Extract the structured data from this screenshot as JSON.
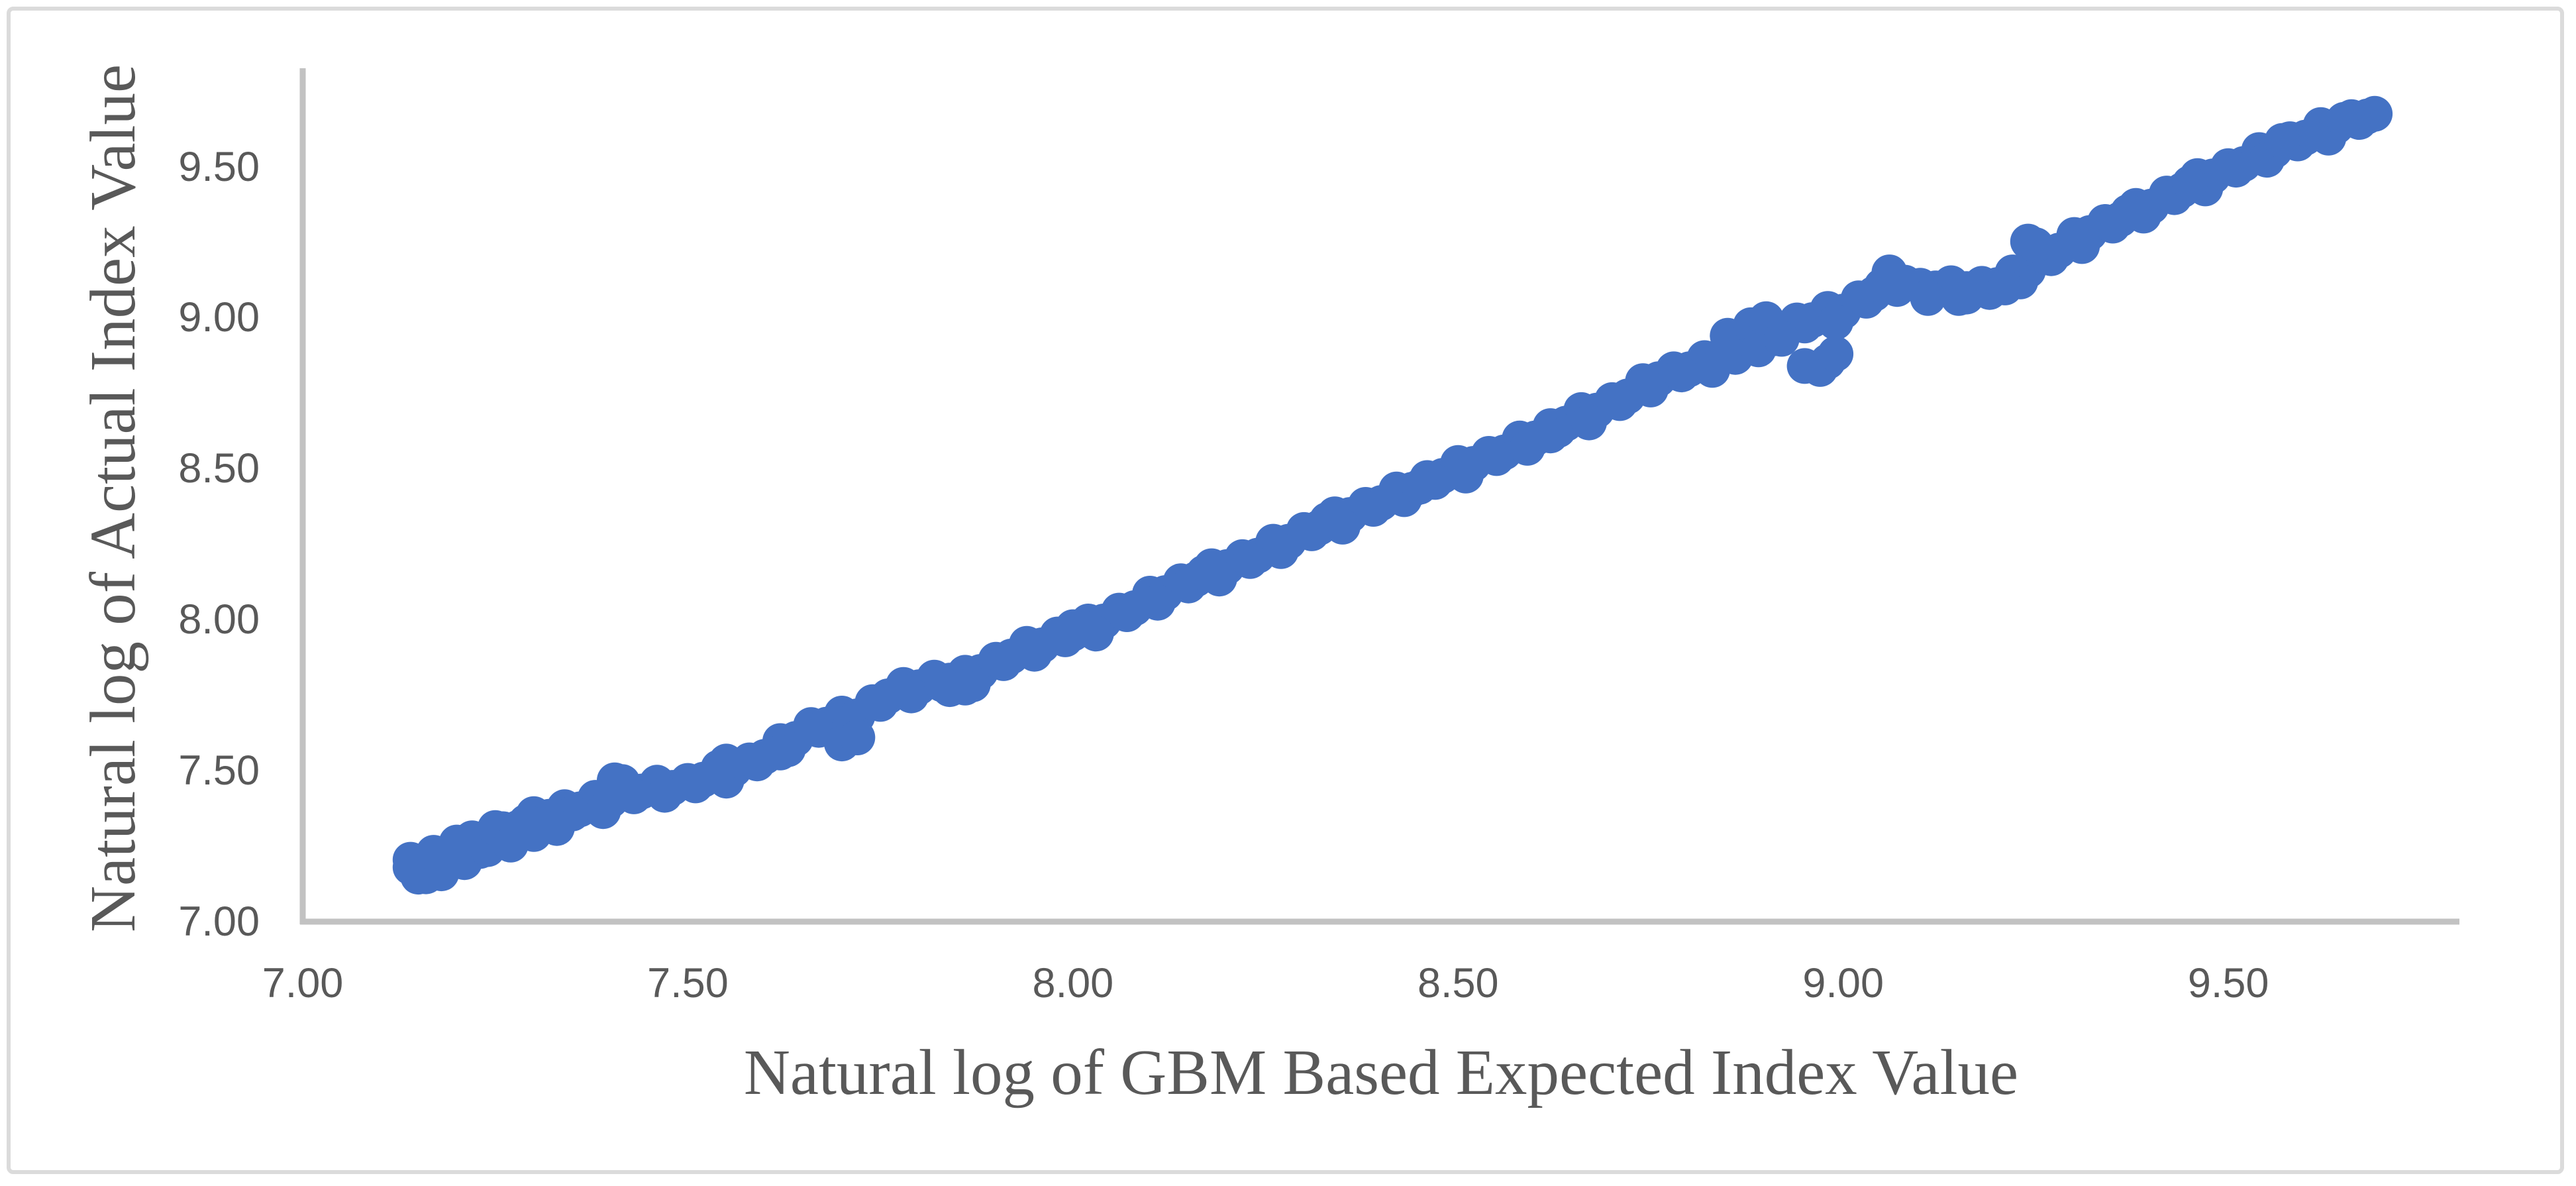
{
  "figure": {
    "background": "#FFFFFF",
    "border_color": "#DBDBDB"
  },
  "chart_data": {
    "type": "scatter",
    "title": "",
    "xlabel": "Natural log of GBM Based Expected Index Value",
    "ylabel": "Natural log of Actual Index Value",
    "xlim": [
      7.0,
      9.8
    ],
    "ylim": [
      7.0,
      9.826
    ],
    "x_ticks": [
      7.0,
      7.5,
      8.0,
      8.5,
      9.0,
      9.5
    ],
    "x_tick_labels": [
      "7.00",
      "7.50",
      "8.00",
      "8.50",
      "9.00",
      "9.50"
    ],
    "y_ticks": [
      7.0,
      7.5,
      8.0,
      8.5,
      9.0,
      9.5
    ],
    "y_tick_labels": [
      "7.00",
      "7.50",
      "8.00",
      "8.50",
      "9.00",
      "9.50"
    ],
    "grid": false,
    "legend": false,
    "marker_color": "#4472C4",
    "marker_radius_px": 27,
    "axis_line_color": "#C2C2C2",
    "tick_label_color": "#595959",
    "axis_title_color": "#595959",
    "points": [
      [
        7.14,
        7.18
      ],
      [
        7.16,
        7.181
      ],
      [
        7.18,
        7.222
      ],
      [
        7.2,
        7.231
      ],
      [
        7.22,
        7.276
      ],
      [
        7.24,
        7.273
      ],
      [
        7.26,
        7.306
      ],
      [
        7.28,
        7.311
      ],
      [
        7.3,
        7.356
      ],
      [
        7.32,
        7.347
      ],
      [
        7.34,
        7.379
      ],
      [
        7.36,
        7.372
      ],
      [
        7.38,
        7.41
      ],
      [
        7.4,
        7.402
      ],
      [
        7.42,
        7.431
      ],
      [
        7.44,
        7.431
      ],
      [
        7.46,
        7.46
      ],
      [
        7.48,
        7.443
      ],
      [
        7.5,
        7.466
      ],
      [
        7.52,
        7.47
      ],
      [
        7.54,
        7.51
      ],
      [
        7.56,
        7.504
      ],
      [
        7.58,
        7.534
      ],
      [
        7.6,
        7.546
      ],
      [
        7.62,
        7.598
      ],
      [
        7.64,
        7.605
      ],
      [
        7.66,
        7.651
      ],
      [
        7.68,
        7.652
      ],
      [
        7.7,
        7.689
      ],
      [
        7.72,
        7.68
      ],
      [
        7.74,
        7.727
      ],
      [
        7.76,
        7.746
      ],
      [
        7.78,
        7.784
      ],
      [
        7.8,
        7.776
      ],
      [
        7.82,
        7.808
      ],
      [
        7.84,
        7.798
      ],
      [
        7.86,
        7.824
      ],
      [
        7.88,
        7.827
      ],
      [
        7.9,
        7.867
      ],
      [
        7.92,
        7.878
      ],
      [
        7.94,
        7.92
      ],
      [
        7.96,
        7.915
      ],
      [
        7.98,
        7.951
      ],
      [
        8.0,
        7.954
      ],
      [
        8.02,
        7.994
      ],
      [
        8.04,
        7.994
      ],
      [
        8.06,
        8.03
      ],
      [
        8.08,
        8.038
      ],
      [
        8.1,
        8.086
      ],
      [
        8.12,
        8.088
      ],
      [
        8.14,
        8.127
      ],
      [
        8.16,
        8.134
      ],
      [
        8.18,
        8.177
      ],
      [
        8.2,
        8.174
      ],
      [
        8.22,
        8.207
      ],
      [
        8.24,
        8.212
      ],
      [
        8.26,
        8.258
      ],
      [
        8.28,
        8.258
      ],
      [
        8.3,
        8.297
      ],
      [
        8.32,
        8.305
      ],
      [
        8.34,
        8.349
      ],
      [
        8.36,
        8.347
      ],
      [
        8.38,
        8.38
      ],
      [
        8.4,
        8.386
      ],
      [
        8.42,
        8.431
      ],
      [
        8.44,
        8.43
      ],
      [
        8.46,
        8.469
      ],
      [
        8.48,
        8.476
      ],
      [
        8.5,
        8.519
      ],
      [
        8.52,
        8.516
      ],
      [
        8.54,
        8.549
      ],
      [
        8.56,
        8.554
      ],
      [
        8.58,
        8.6
      ],
      [
        8.6,
        8.6
      ],
      [
        8.62,
        8.641
      ],
      [
        8.64,
        8.649
      ],
      [
        8.66,
        8.694
      ],
      [
        8.68,
        8.692
      ],
      [
        8.7,
        8.727
      ],
      [
        8.72,
        8.739
      ],
      [
        8.74,
        8.79
      ],
      [
        8.76,
        8.796
      ],
      [
        8.78,
        8.829
      ],
      [
        8.8,
        8.829
      ],
      [
        8.82,
        8.866
      ],
      [
        8.84,
        8.872
      ],
      [
        8.86,
        8.914
      ],
      [
        8.88,
        8.928
      ],
      [
        8.9,
        8.966
      ],
      [
        8.92,
        8.959
      ],
      [
        8.94,
        8.991
      ],
      [
        8.96,
        8.992
      ],
      [
        8.98,
        9.029
      ],
      [
        9.0,
        9.02
      ],
      [
        9.02,
        9.064
      ],
      [
        9.04,
        9.079
      ],
      [
        9.06,
        9.135
      ],
      [
        9.08,
        9.116
      ],
      [
        9.1,
        9.106
      ],
      [
        9.12,
        9.097
      ],
      [
        9.14,
        9.114
      ],
      [
        9.16,
        9.095
      ],
      [
        9.18,
        9.112
      ],
      [
        9.2,
        9.108
      ],
      [
        9.22,
        9.15
      ],
      [
        9.24,
        9.156
      ],
      [
        9.26,
        9.206
      ],
      [
        9.28,
        9.222
      ],
      [
        9.3,
        9.274
      ],
      [
        9.32,
        9.28
      ],
      [
        9.34,
        9.317
      ],
      [
        9.36,
        9.326
      ],
      [
        9.38,
        9.37
      ],
      [
        9.4,
        9.368
      ],
      [
        9.42,
        9.411
      ],
      [
        9.44,
        9.422
      ],
      [
        9.46,
        9.469
      ],
      [
        9.48,
        9.468
      ],
      [
        9.5,
        9.502
      ],
      [
        9.52,
        9.509
      ],
      [
        9.54,
        9.555
      ],
      [
        9.56,
        9.553
      ],
      [
        9.58,
        9.591
      ],
      [
        9.6,
        9.596
      ],
      [
        9.62,
        9.638
      ],
      [
        9.64,
        9.633
      ],
      [
        9.66,
        9.664
      ],
      [
        9.68,
        9.666
      ],
      [
        7.15,
        7.149
      ],
      [
        7.19,
        7.21
      ],
      [
        7.23,
        7.234
      ],
      [
        7.27,
        7.292
      ],
      [
        7.31,
        7.321
      ],
      [
        7.35,
        7.358
      ],
      [
        7.39,
        7.366
      ],
      [
        7.43,
        7.415
      ],
      [
        7.47,
        7.42
      ],
      [
        7.51,
        7.451
      ],
      [
        7.55,
        7.467
      ],
      [
        7.59,
        7.524
      ],
      [
        7.63,
        7.571
      ],
      [
        7.67,
        7.635
      ],
      [
        7.71,
        7.644
      ],
      [
        7.75,
        7.721
      ],
      [
        7.79,
        7.749
      ],
      [
        7.83,
        7.786
      ],
      [
        7.87,
        7.786
      ],
      [
        7.91,
        7.856
      ],
      [
        7.95,
        7.887
      ],
      [
        7.99,
        7.935
      ],
      [
        8.03,
        7.954
      ],
      [
        8.07,
        8.018
      ],
      [
        8.11,
        8.056
      ],
      [
        8.15,
        8.113
      ],
      [
        8.19,
        8.136
      ],
      [
        8.23,
        8.194
      ],
      [
        8.27,
        8.227
      ],
      [
        8.31,
        8.286
      ],
      [
        8.35,
        8.308
      ],
      [
        8.39,
        8.367
      ],
      [
        8.43,
        8.399
      ],
      [
        8.47,
        8.456
      ],
      [
        8.51,
        8.477
      ],
      [
        8.55,
        8.535
      ],
      [
        8.59,
        8.569
      ],
      [
        8.63,
        8.628
      ],
      [
        8.67,
        8.653
      ],
      [
        8.71,
        8.717
      ],
      [
        8.75,
        8.762
      ],
      [
        8.79,
        8.812
      ],
      [
        8.83,
        8.827
      ],
      [
        8.87,
        8.905
      ],
      [
        8.91,
        8.932
      ],
      [
        8.95,
        8.974
      ],
      [
        8.99,
        8.985
      ],
      [
        9.03,
        9.056
      ],
      [
        9.07,
        9.095
      ],
      [
        9.11,
        9.065
      ],
      [
        9.15,
        9.065
      ],
      [
        9.19,
        9.094
      ],
      [
        9.23,
        9.12
      ],
      [
        9.27,
        9.197
      ],
      [
        9.31,
        9.237
      ],
      [
        9.35,
        9.305
      ],
      [
        9.39,
        9.338
      ],
      [
        9.43,
        9.399
      ],
      [
        9.47,
        9.428
      ],
      [
        9.51,
        9.49
      ],
      [
        9.55,
        9.523
      ],
      [
        9.59,
        9.577
      ],
      [
        9.63,
        9.596
      ],
      [
        9.67,
        9.648
      ],
      [
        7.14,
        7.205
      ],
      [
        7.16,
        7.15
      ],
      [
        7.17,
        7.228
      ],
      [
        7.18,
        7.16
      ],
      [
        7.2,
        7.262
      ],
      [
        7.21,
        7.197
      ],
      [
        7.24,
        7.24
      ],
      [
        7.25,
        7.31
      ],
      [
        7.27,
        7.255
      ],
      [
        7.29,
        7.33
      ],
      [
        7.3,
        7.29
      ],
      [
        7.33,
        7.31
      ],
      [
        7.405,
        7.468
      ],
      [
        7.415,
        7.462
      ],
      [
        7.7,
        7.59
      ],
      [
        7.72,
        7.61
      ],
      [
        7.84,
        7.77
      ],
      [
        7.86,
        7.775
      ],
      [
        7.55,
        7.53
      ],
      [
        7.62,
        7.56
      ],
      [
        7.78,
        7.76
      ],
      [
        8.0,
        7.975
      ],
      [
        8.17,
        8.155
      ],
      [
        8.33,
        8.33
      ],
      [
        8.45,
        8.44
      ],
      [
        8.62,
        8.61
      ],
      [
        8.85,
        8.94
      ],
      [
        8.86,
        8.87
      ],
      [
        8.88,
        8.975
      ],
      [
        8.89,
        8.895
      ],
      [
        8.9,
        8.995
      ],
      [
        8.92,
        8.93
      ],
      [
        8.95,
        8.84
      ],
      [
        8.97,
        8.83
      ],
      [
        8.98,
        8.855
      ],
      [
        8.99,
        8.88
      ],
      [
        9.05,
        9.105
      ],
      [
        9.06,
        9.15
      ],
      [
        9.07,
        9.12
      ],
      [
        9.16,
        9.07
      ],
      [
        9.19,
        9.085
      ],
      [
        9.21,
        9.1
      ],
      [
        9.24,
        9.252
      ],
      [
        9.25,
        9.24
      ],
      [
        9.37,
        9.35
      ],
      [
        9.45,
        9.445
      ],
      [
        9.57,
        9.585
      ],
      [
        9.65,
        9.655
      ],
      [
        9.69,
        9.675
      ]
    ]
  }
}
